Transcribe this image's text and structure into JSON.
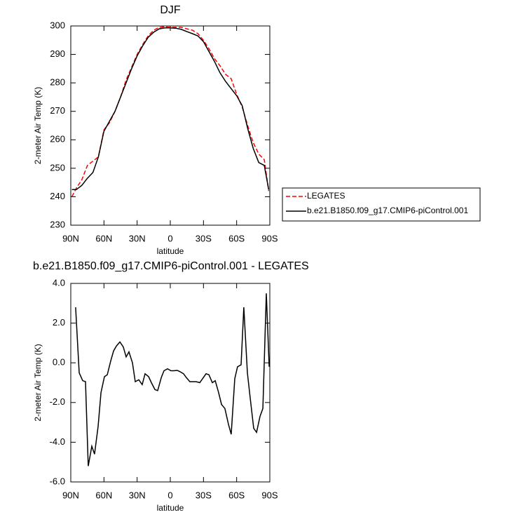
{
  "chart_data": [
    {
      "type": "line",
      "title": "DJF",
      "xlabel": "latitude",
      "ylabel": "2-meter Air Temp (K)",
      "x": [
        89,
        85,
        80,
        75,
        70,
        65,
        60,
        55,
        50,
        45,
        40,
        35,
        30,
        25,
        20,
        15,
        10,
        5,
        0,
        -5,
        -10,
        -15,
        -20,
        -25,
        -30,
        -35,
        -40,
        -45,
        -50,
        -55,
        -60,
        -65,
        -70,
        -75,
        -80,
        -85,
        -89
      ],
      "series": [
        {
          "name": "LEGATES",
          "color": "#ff0000",
          "linestyle": "dashed",
          "values": [
            240,
            243,
            246,
            251,
            252.5,
            254,
            263.5,
            266,
            270,
            275,
            281,
            285.5,
            290,
            293.5,
            296.5,
            298.5,
            299.5,
            299.7,
            299.5,
            299.5,
            299.5,
            299,
            298.5,
            297.3,
            295,
            292,
            288.5,
            286,
            283,
            281.5,
            276,
            271.5,
            265,
            259,
            255,
            253,
            242
          ]
        },
        {
          "name": "b.e21.B1850.f09_g17.CMIP6-piControl.001",
          "color": "#000000",
          "linestyle": "solid",
          "values": [
            242.5,
            242.5,
            244,
            246.5,
            248.5,
            254,
            263,
            266.5,
            270,
            275,
            280,
            285,
            289.5,
            293,
            296,
            297.8,
            299,
            299.3,
            299.3,
            299.2,
            298.8,
            298,
            297.3,
            296.5,
            294.5,
            291,
            287.5,
            283.5,
            280.5,
            278,
            275.5,
            272,
            264,
            257,
            252,
            251,
            242.5
          ]
        }
      ],
      "xlim": [
        90,
        -90
      ],
      "xticks": [
        {
          "value": 90,
          "label": "90N"
        },
        {
          "value": 60,
          "label": "60N"
        },
        {
          "value": 30,
          "label": "30N"
        },
        0,
        {
          "value": -30,
          "label": "30S"
        },
        {
          "value": -60,
          "label": "60S"
        },
        {
          "value": -90,
          "label": "90S"
        }
      ],
      "ylim": [
        230,
        300
      ],
      "yticks": [
        230,
        240,
        250,
        260,
        270,
        280,
        290,
        300
      ],
      "legend": "outside right"
    },
    {
      "type": "line",
      "title": "b.e21.B1850.f09_g17.CMIP6-piControl.001 - LEGATES",
      "xlabel": "latitude",
      "ylabel": "2-meter Air Temp (K)",
      "x": [
        85.6,
        82.4,
        79.2,
        76.7,
        74.2,
        71,
        68.5,
        65.3,
        62.7,
        59.6,
        57,
        53.9,
        51.3,
        48.7,
        45.6,
        42.5,
        39.9,
        37.4,
        34.2,
        31.7,
        28.5,
        25.4,
        22.8,
        19.6,
        17.1,
        13.9,
        11.4,
        8.2,
        5.7,
        2.5,
        -0.6,
        -3.2,
        -6.3,
        -8.9,
        -12,
        -14.6,
        -17.7,
        -20.3,
        -23.5,
        -26.6,
        -29.2,
        -32.3,
        -34.9,
        -38,
        -40.6,
        -43.7,
        -46.3,
        -49.4,
        -52.6,
        -55.1,
        -58.3,
        -60.8,
        -64,
        -66.5,
        -69.7,
        -72.3,
        -75.4,
        -78,
        -81.1,
        -83.7,
        -86.8,
        -89.4
      ],
      "values": [
        2.8,
        -0.5,
        -0.9,
        -0.95,
        -5.2,
        -4.2,
        -4.6,
        -3.2,
        -1.5,
        -0.7,
        -0.6,
        0.1,
        0.6,
        0.85,
        1.05,
        0.8,
        0.3,
        0.55,
        0,
        -0.95,
        -0.85,
        -1.1,
        -0.55,
        -0.7,
        -1,
        -1.35,
        -1.4,
        -0.75,
        -0.4,
        -0.3,
        -0.4,
        -0.4,
        -0.38,
        -0.45,
        -0.55,
        -0.75,
        -0.95,
        -0.95,
        -0.95,
        -1.0,
        -0.8,
        -0.55,
        -0.6,
        -1.0,
        -0.9,
        -1.5,
        -2.1,
        -2.3,
        -3.1,
        -3.6,
        -0.8,
        -0.2,
        -0.1,
        2.8,
        -0.5,
        -1.8,
        -3.3,
        -3.5,
        -2.7,
        -2.3,
        3.5,
        -0.2
      ],
      "color": "#000000",
      "xlim": [
        90,
        -90
      ],
      "xticks": [
        {
          "value": 90,
          "label": "90N"
        },
        {
          "value": 60,
          "label": "60N"
        },
        {
          "value": 30,
          "label": "30N"
        },
        0,
        {
          "value": -30,
          "label": "30S"
        },
        {
          "value": -60,
          "label": "60S"
        },
        {
          "value": -90,
          "label": "90S"
        }
      ],
      "ylim": [
        -6,
        4
      ],
      "yticks": [
        {
          "value": 4,
          "label": "4.0"
        },
        {
          "value": 2,
          "label": "2.0"
        },
        {
          "value": 0,
          "label": "0.0"
        },
        {
          "value": -2,
          "label": "-2.0"
        },
        {
          "value": -4,
          "label": "-4.0"
        },
        {
          "value": -6,
          "label": "-6.0"
        }
      ]
    }
  ]
}
